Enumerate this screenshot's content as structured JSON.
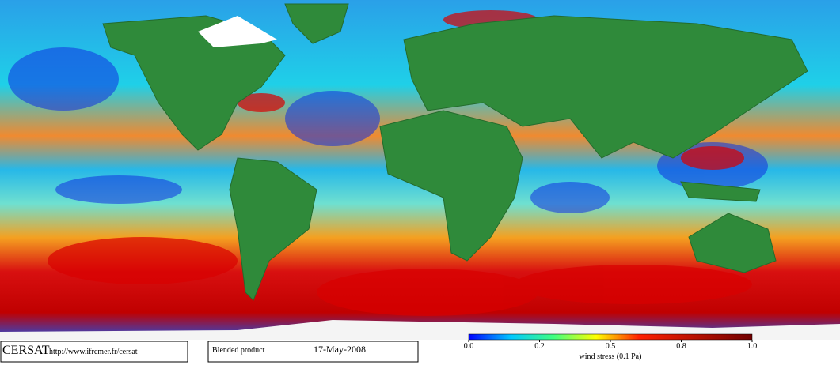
{
  "header": {
    "logo": "CERSAT",
    "url": "http://www.ifremer.fr/cersat",
    "product": "Blended product",
    "date": "17-May-2008"
  },
  "legend": {
    "title": "wind stress (0.1 Pa)",
    "range": [
      0,
      1
    ],
    "ticks": [
      {
        "value": 0,
        "label": "0.0"
      },
      {
        "value": 0.2,
        "label": "0.2"
      },
      {
        "value": 0.5,
        "label": "0.5"
      },
      {
        "value": 0.8,
        "label": "0.8"
      },
      {
        "value": 1,
        "label": "1.0"
      }
    ]
  }
}
